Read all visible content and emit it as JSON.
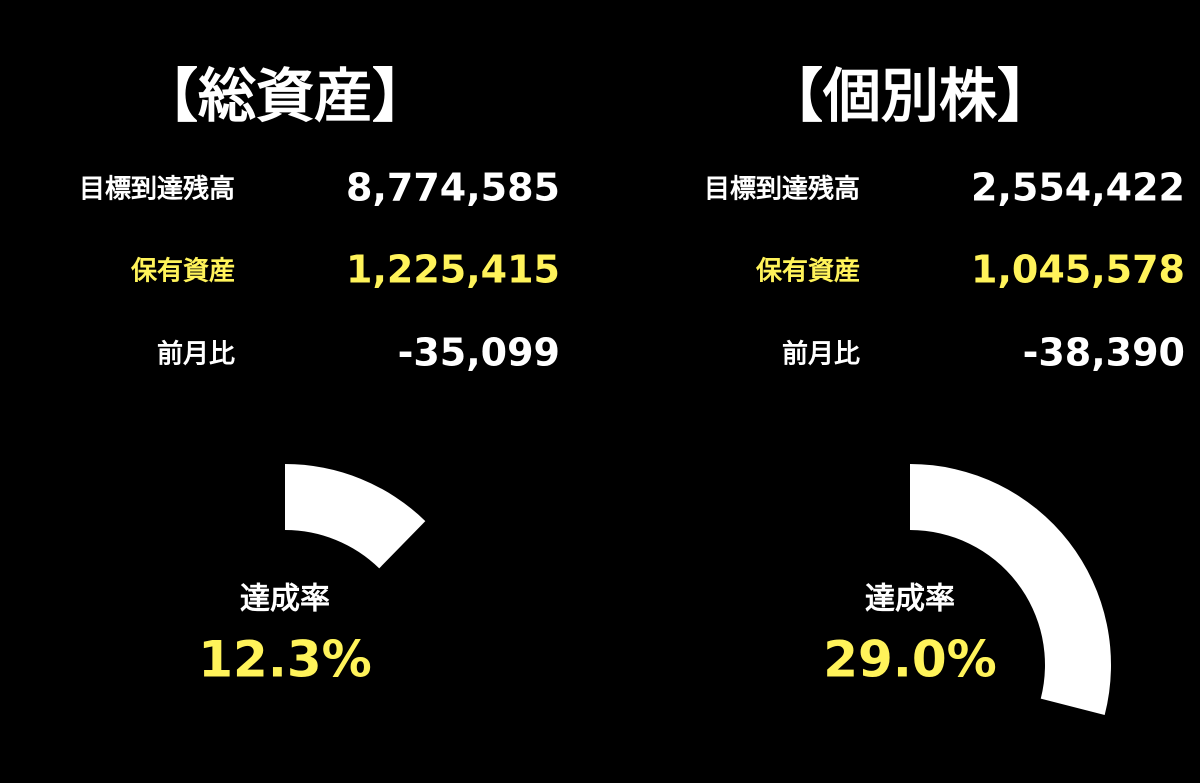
{
  "panels": [
    {
      "title": "【総資産】",
      "rows": [
        {
          "label": "目標到達残高",
          "value": "8,774,585"
        },
        {
          "label": "保有資産",
          "value": "1,225,415"
        },
        {
          "label": "前月比",
          "value": "-35,099"
        }
      ],
      "gauge": {
        "label": "達成率",
        "value": 12.3,
        "value_label": "12.3%"
      }
    },
    {
      "title": "【個別株】",
      "rows": [
        {
          "label": "目標到達残高",
          "value": "2,554,422"
        },
        {
          "label": "保有資産",
          "value": "1,045,578"
        },
        {
          "label": "前月比",
          "value": "-38,390"
        }
      ],
      "gauge": {
        "label": "達成率",
        "value": 29.0,
        "value_label": "29.0%"
      }
    }
  ]
}
